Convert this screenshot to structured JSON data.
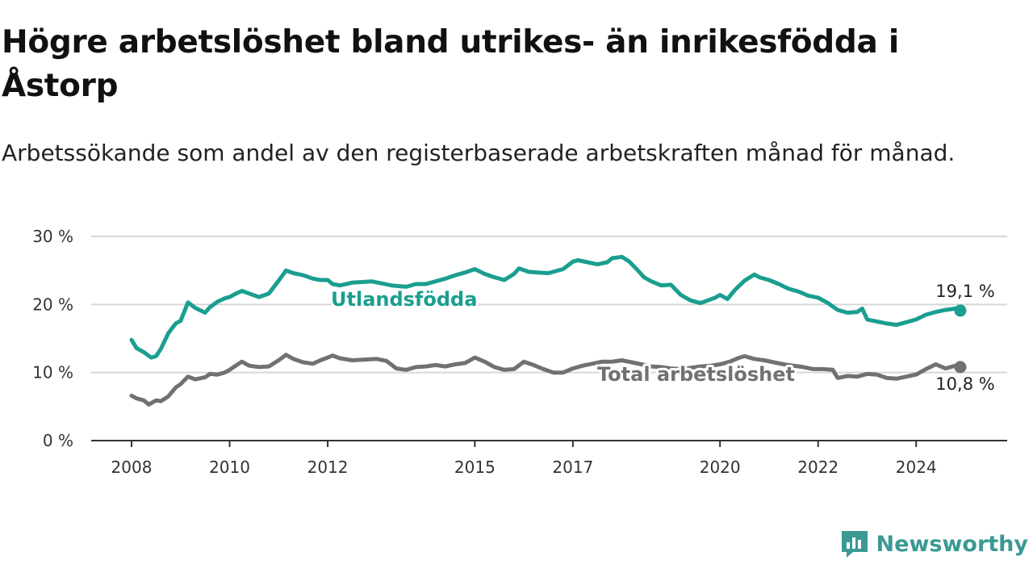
{
  "title": "Högre arbetslöshet bland utrikes- än inrikesfödda i Åstorp",
  "subtitle": "Arbetssökande som andel av den registerbaserade arbetskraften månad för månad.",
  "brand": {
    "name": "Newsworthy",
    "icon": "newsworthy-logo-icon",
    "color": "#3a9a93"
  },
  "chart_data": {
    "type": "line",
    "xlabel": "",
    "ylabel": "",
    "ylim": [
      0,
      30
    ],
    "yticks": [
      0,
      10,
      20,
      30
    ],
    "ytick_labels": [
      "0 %",
      "10 %",
      "20 %",
      "30 %"
    ],
    "xlim": [
      2008,
      2025
    ],
    "xticks": [
      2008,
      2010,
      2012,
      2015,
      2017,
      2020,
      2022,
      2024
    ],
    "xtick_labels": [
      "2008",
      "2010",
      "2012",
      "2015",
      "2017",
      "2020",
      "2022",
      "2024"
    ],
    "grid": true,
    "series": [
      {
        "name": "Utlandsfödda",
        "color": "#1a9e8f",
        "end_label": "19,1 %",
        "x": [
          2008.0,
          2008.1,
          2008.25,
          2008.4,
          2008.5,
          2008.6,
          2008.75,
          2008.9,
          2009.0,
          2009.15,
          2009.3,
          2009.5,
          2009.6,
          2009.75,
          2009.9,
          2010.0,
          2010.1,
          2010.25,
          2010.4,
          2010.6,
          2010.8,
          2011.0,
          2011.15,
          2011.3,
          2011.5,
          2011.7,
          2011.85,
          2012.0,
          2012.1,
          2012.25,
          2012.5,
          2012.9,
          2013.3,
          2013.6,
          2013.8,
          2014.0,
          2014.2,
          2014.4,
          2014.6,
          2014.8,
          2015.0,
          2015.2,
          2015.4,
          2015.6,
          2015.8,
          2015.9,
          2016.1,
          2016.3,
          2016.5,
          2016.8,
          2017.0,
          2017.1,
          2017.3,
          2017.5,
          2017.7,
          2017.8,
          2018.0,
          2018.15,
          2018.3,
          2018.45,
          2018.6,
          2018.8,
          2019.0,
          2019.2,
          2019.4,
          2019.6,
          2019.75,
          2019.9,
          2020.0,
          2020.15,
          2020.3,
          2020.5,
          2020.7,
          2020.8,
          2021.0,
          2021.2,
          2021.4,
          2021.6,
          2021.8,
          2022.0,
          2022.2,
          2022.4,
          2022.6,
          2022.8,
          2022.9,
          2023.0,
          2023.2,
          2023.4,
          2023.6,
          2023.8,
          2024.0,
          2024.2,
          2024.4,
          2024.6,
          2024.8,
          2024.9
        ],
        "y": [
          14.8,
          13.6,
          13.0,
          12.2,
          12.4,
          13.5,
          15.8,
          17.2,
          17.6,
          20.3,
          19.5,
          18.8,
          19.6,
          20.4,
          20.9,
          21.1,
          21.5,
          22.0,
          21.6,
          21.1,
          21.6,
          23.5,
          25.0,
          24.6,
          24.3,
          23.8,
          23.6,
          23.6,
          23.0,
          22.8,
          23.2,
          23.4,
          22.8,
          22.6,
          23.0,
          23.0,
          23.4,
          23.8,
          24.3,
          24.7,
          25.2,
          24.5,
          24.0,
          23.6,
          24.5,
          25.3,
          24.8,
          24.7,
          24.6,
          25.2,
          26.3,
          26.5,
          26.2,
          25.9,
          26.2,
          26.8,
          27.0,
          26.3,
          25.2,
          24.0,
          23.4,
          22.8,
          22.9,
          21.4,
          20.6,
          20.2,
          20.6,
          21.0,
          21.4,
          20.8,
          22.1,
          23.5,
          24.4,
          24.0,
          23.6,
          23.0,
          22.3,
          21.9,
          21.3,
          21.0,
          20.2,
          19.2,
          18.8,
          18.9,
          19.4,
          17.8,
          17.5,
          17.2,
          17.0,
          17.4,
          17.8,
          18.5,
          18.9,
          19.2,
          19.4,
          19.1
        ]
      },
      {
        "name": "Total arbetslöshet",
        "color": "#717171",
        "end_label": "10,8 %",
        "x": [
          2008.0,
          2008.1,
          2008.25,
          2008.35,
          2008.5,
          2008.6,
          2008.75,
          2008.9,
          2009.0,
          2009.15,
          2009.3,
          2009.5,
          2009.6,
          2009.75,
          2009.9,
          2010.0,
          2010.1,
          2010.25,
          2010.4,
          2010.6,
          2010.8,
          2011.0,
          2011.15,
          2011.3,
          2011.5,
          2011.7,
          2011.85,
          2012.0,
          2012.1,
          2012.25,
          2012.5,
          2012.75,
          2013.0,
          2013.2,
          2013.4,
          2013.6,
          2013.8,
          2014.0,
          2014.2,
          2014.4,
          2014.6,
          2014.8,
          2015.0,
          2015.2,
          2015.4,
          2015.6,
          2015.8,
          2016.0,
          2016.2,
          2016.4,
          2016.6,
          2016.8,
          2017.0,
          2017.2,
          2017.4,
          2017.6,
          2017.8,
          2018.0,
          2018.2,
          2018.4,
          2018.6,
          2018.8,
          2019.0,
          2019.2,
          2019.4,
          2019.6,
          2019.8,
          2020.0,
          2020.2,
          2020.4,
          2020.5,
          2020.7,
          2020.9,
          2021.1,
          2021.3,
          2021.5,
          2021.7,
          2021.9,
          2022.1,
          2022.3,
          2022.4,
          2022.6,
          2022.8,
          2023.0,
          2023.2,
          2023.4,
          2023.6,
          2023.8,
          2024.0,
          2024.2,
          2024.4,
          2024.6,
          2024.8,
          2024.9
        ],
        "y": [
          6.6,
          6.2,
          5.9,
          5.3,
          5.9,
          5.8,
          6.5,
          7.8,
          8.3,
          9.4,
          9.0,
          9.3,
          9.8,
          9.7,
          10.0,
          10.4,
          10.9,
          11.6,
          11.0,
          10.8,
          10.9,
          11.8,
          12.6,
          12.0,
          11.5,
          11.3,
          11.8,
          12.2,
          12.5,
          12.1,
          11.8,
          11.9,
          12.0,
          11.7,
          10.6,
          10.4,
          10.8,
          10.9,
          11.1,
          10.9,
          11.2,
          11.4,
          12.2,
          11.6,
          10.8,
          10.4,
          10.5,
          11.6,
          11.1,
          10.5,
          10.0,
          10.0,
          10.6,
          11.0,
          11.3,
          11.6,
          11.6,
          11.8,
          11.5,
          11.2,
          10.9,
          10.8,
          10.6,
          10.5,
          10.7,
          10.9,
          11.0,
          11.2,
          11.6,
          12.2,
          12.4,
          12.0,
          11.8,
          11.5,
          11.2,
          11.0,
          10.8,
          10.5,
          10.5,
          10.4,
          9.2,
          9.5,
          9.4,
          9.8,
          9.7,
          9.2,
          9.1,
          9.4,
          9.7,
          10.5,
          11.2,
          10.6,
          11.0,
          10.8
        ]
      }
    ]
  }
}
